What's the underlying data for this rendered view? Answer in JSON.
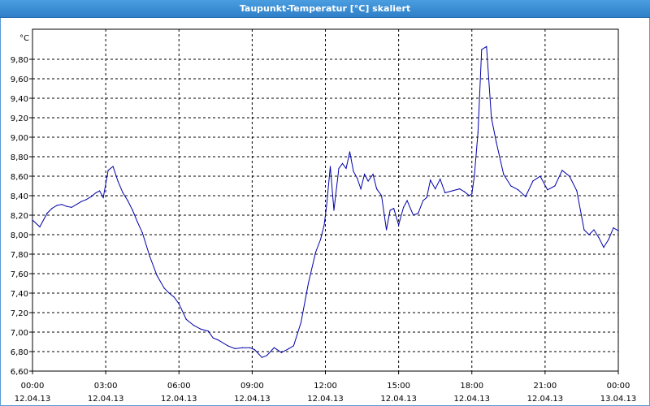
{
  "window": {
    "title": "Taupunkt-Temperatur [°C] skaliert"
  },
  "chart_data": {
    "type": "line",
    "title": "Taupunkt-Temperatur [°C] skaliert",
    "ylabel": "°C",
    "ylim": [
      6.6,
      9.9
    ],
    "xlim_hours": [
      0,
      24
    ],
    "grid": true,
    "yticks": [
      "6,60",
      "6,80",
      "7,00",
      "7,20",
      "7,40",
      "7,60",
      "7,80",
      "8,00",
      "8,20",
      "8,40",
      "8,60",
      "8,80",
      "9,00",
      "9,20",
      "9,40",
      "9,60",
      "9,80"
    ],
    "xticks": [
      {
        "time": "00:00",
        "date": "12.04.13"
      },
      {
        "time": "03:00",
        "date": "12.04.13"
      },
      {
        "time": "06:00",
        "date": "12.04.13"
      },
      {
        "time": "09:00",
        "date": "12.04.13"
      },
      {
        "time": "12:00",
        "date": "12.04.13"
      },
      {
        "time": "15:00",
        "date": "12.04.13"
      },
      {
        "time": "18:00",
        "date": "12.04.13"
      },
      {
        "time": "21:00",
        "date": "12.04.13"
      },
      {
        "time": "00:00",
        "date": "13.04.13"
      }
    ],
    "series": [
      {
        "color": "#0000aa",
        "x": [
          0,
          0.3,
          0.6,
          0.8,
          1.0,
          1.2,
          1.4,
          1.6,
          1.8,
          2.0,
          2.2,
          2.4,
          2.6,
          2.75,
          2.9,
          3.1,
          3.3,
          3.5,
          3.7,
          3.9,
          4.1,
          4.3,
          4.5,
          4.8,
          5.1,
          5.4,
          5.6,
          5.8,
          6.0,
          6.3,
          6.6,
          6.9,
          7.2,
          7.4,
          7.6,
          8.0,
          8.3,
          8.6,
          8.9,
          9.1,
          9.4,
          9.6,
          9.9,
          10.2,
          10.5,
          10.7,
          11.0,
          11.3,
          11.6,
          11.8,
          11.95,
          12.05,
          12.2,
          12.35,
          12.55,
          12.7,
          12.85,
          13.0,
          13.15,
          13.3,
          13.45,
          13.6,
          13.75,
          13.95,
          14.1,
          14.3,
          14.5,
          14.65,
          14.8,
          15.0,
          15.2,
          15.35,
          15.6,
          15.8,
          16.0,
          16.15,
          16.3,
          16.5,
          16.7,
          16.9,
          17.2,
          17.5,
          17.7,
          17.9,
          18.0,
          18.1,
          18.25,
          18.4,
          18.6,
          18.8,
          19.0,
          19.3,
          19.6,
          19.9,
          20.2,
          20.5,
          20.8,
          21.1,
          21.4,
          21.7,
          22.0,
          22.3,
          22.6,
          22.8,
          23.0,
          23.2,
          23.4,
          23.6,
          23.8,
          24.0
        ],
        "y": [
          8.15,
          8.08,
          8.22,
          8.27,
          8.3,
          8.31,
          8.29,
          8.28,
          8.31,
          8.34,
          8.36,
          8.39,
          8.43,
          8.45,
          8.38,
          8.66,
          8.7,
          8.55,
          8.43,
          8.35,
          8.25,
          8.13,
          8.02,
          7.78,
          7.58,
          7.45,
          7.4,
          7.36,
          7.29,
          7.13,
          7.07,
          7.03,
          7.01,
          6.94,
          6.92,
          6.86,
          6.83,
          6.84,
          6.84,
          6.82,
          6.74,
          6.76,
          6.84,
          6.79,
          6.83,
          6.86,
          7.1,
          7.5,
          7.82,
          7.95,
          8.1,
          8.3,
          8.7,
          8.25,
          8.68,
          8.73,
          8.68,
          8.85,
          8.65,
          8.58,
          8.47,
          8.62,
          8.55,
          8.62,
          8.47,
          8.4,
          8.05,
          8.25,
          8.27,
          8.1,
          8.28,
          8.35,
          8.2,
          8.22,
          8.35,
          8.38,
          8.56,
          8.47,
          8.57,
          8.43,
          8.45,
          8.47,
          8.44,
          8.4,
          8.42,
          8.6,
          9.05,
          9.9,
          9.93,
          9.2,
          8.95,
          8.62,
          8.5,
          8.46,
          8.39,
          8.55,
          8.6,
          8.46,
          8.5,
          8.66,
          8.6,
          8.45,
          8.05,
          8.0,
          8.05,
          7.97,
          7.87,
          7.95,
          8.07,
          8.04
        ]
      }
    ]
  }
}
